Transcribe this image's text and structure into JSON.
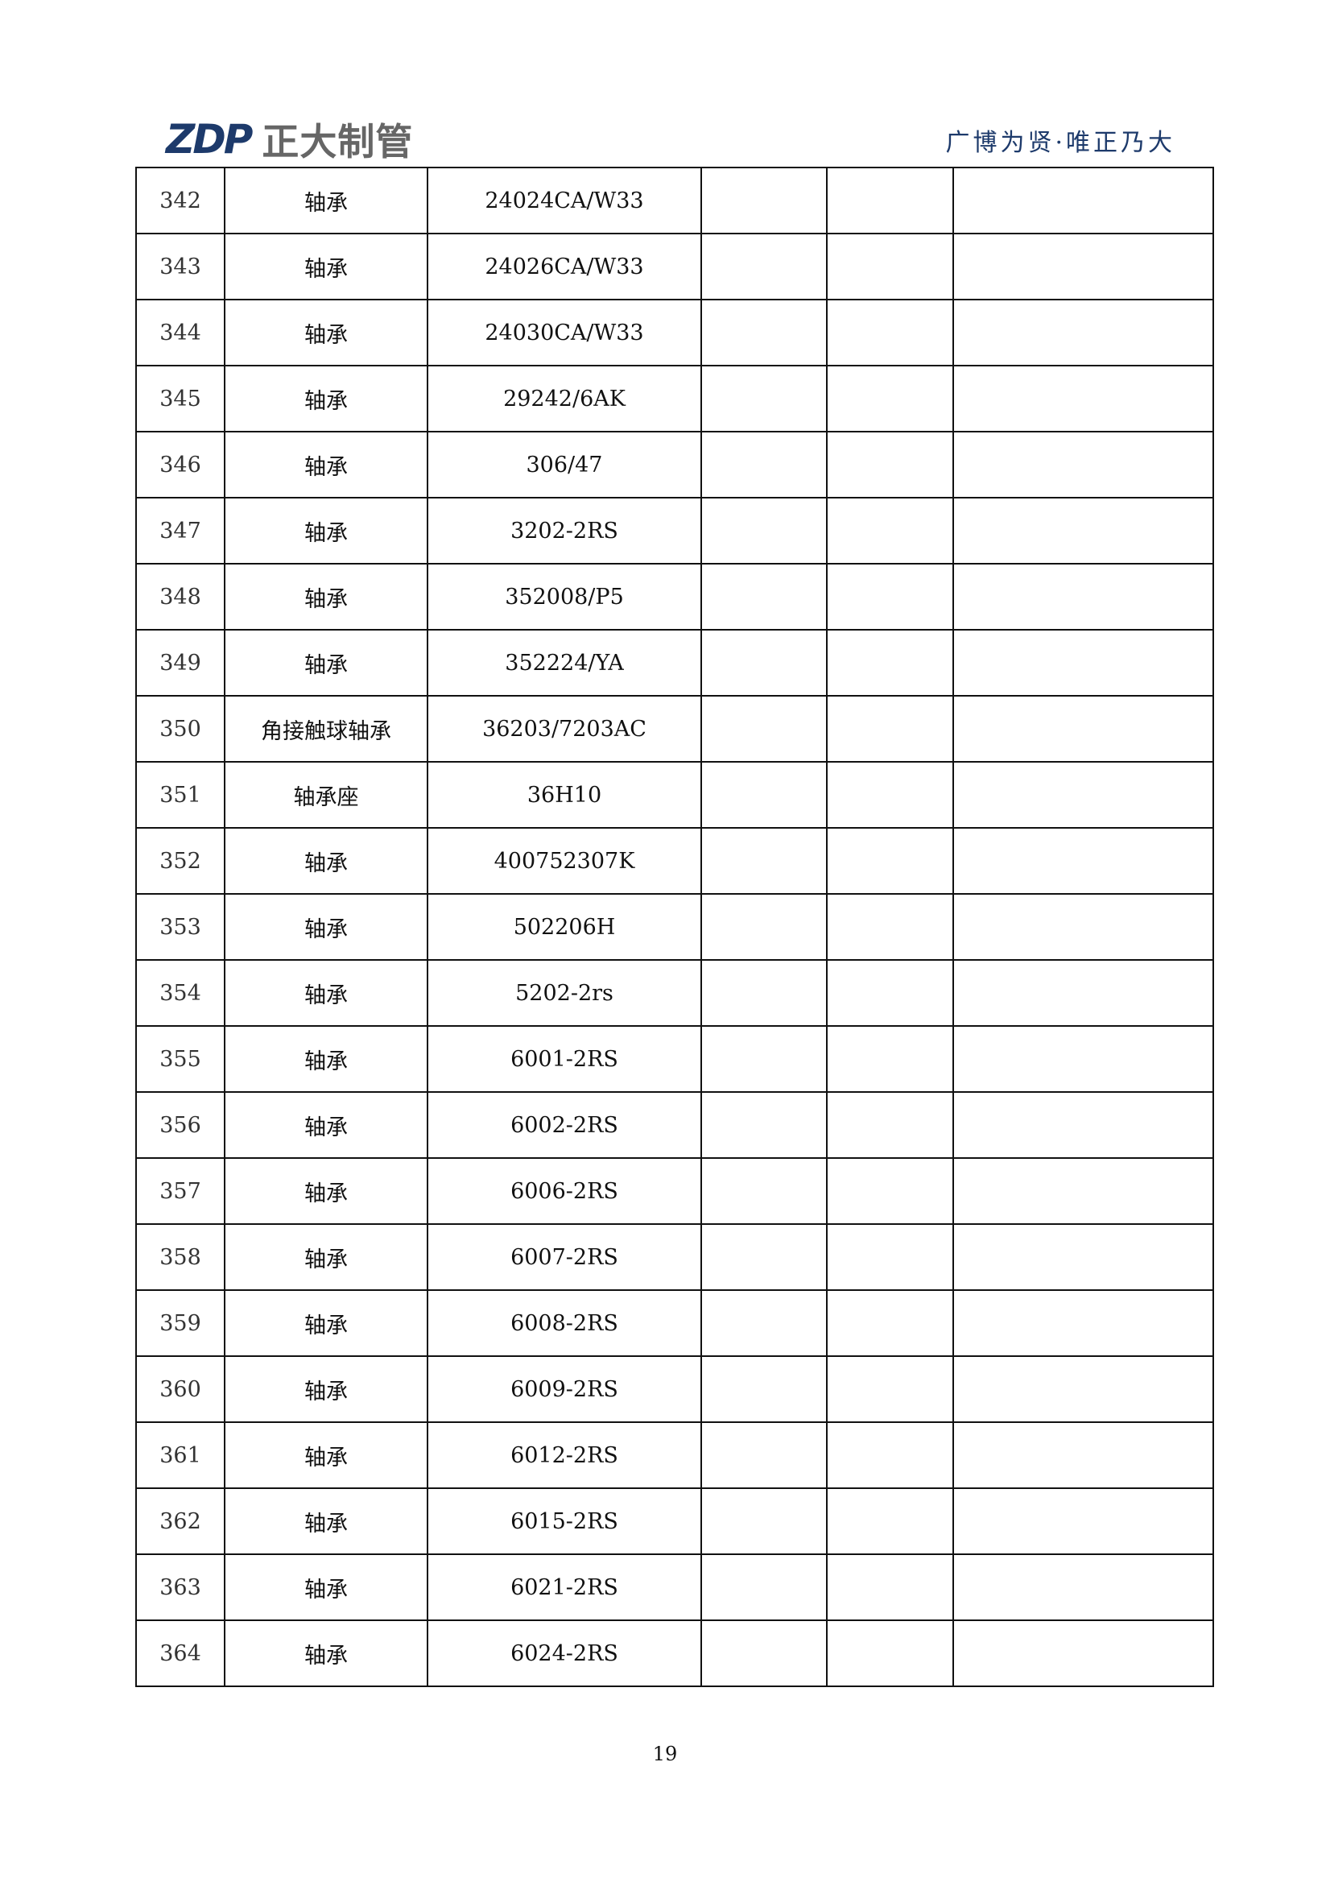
{
  "header": {
    "logo_mark": "ZDP",
    "logo_name": "正大制管",
    "motto": "广博为贤·唯正乃大"
  },
  "rows": [
    [
      "342",
      "轴承",
      "24024CA/W33"
    ],
    [
      "343",
      "轴承",
      "24026CA/W33"
    ],
    [
      "344",
      "轴承",
      "24030CA/W33"
    ],
    [
      "345",
      "轴承",
      "29242/6AK"
    ],
    [
      "346",
      "轴承",
      "306/47"
    ],
    [
      "347",
      "轴承",
      "3202-2RS"
    ],
    [
      "348",
      "轴承",
      "352008/P5"
    ],
    [
      "349",
      "轴承",
      "352224/YA"
    ],
    [
      "350",
      "角接触球轴承",
      "36203/7203AC"
    ],
    [
      "351",
      "轴承座",
      "36H10"
    ],
    [
      "352",
      "轴承",
      "400752307K"
    ],
    [
      "353",
      "轴承",
      "502206H"
    ],
    [
      "354",
      "轴承",
      "5202-2rs"
    ],
    [
      "355",
      "轴承",
      "6001-2RS"
    ],
    [
      "356",
      "轴承",
      "6002-2RS"
    ],
    [
      "357",
      "轴承",
      "6006-2RS"
    ],
    [
      "358",
      "轴承",
      "6007-2RS"
    ],
    [
      "359",
      "轴承",
      "6008-2RS"
    ],
    [
      "360",
      "轴承",
      "6009-2RS"
    ],
    [
      "361",
      "轴承",
      "6012-2RS"
    ],
    [
      "362",
      "轴承",
      "6015-2RS"
    ],
    [
      "363",
      "轴承",
      "6021-2RS"
    ],
    [
      "364",
      "轴承",
      "6024-2RS"
    ]
  ],
  "footer": {
    "page_number": "19"
  }
}
